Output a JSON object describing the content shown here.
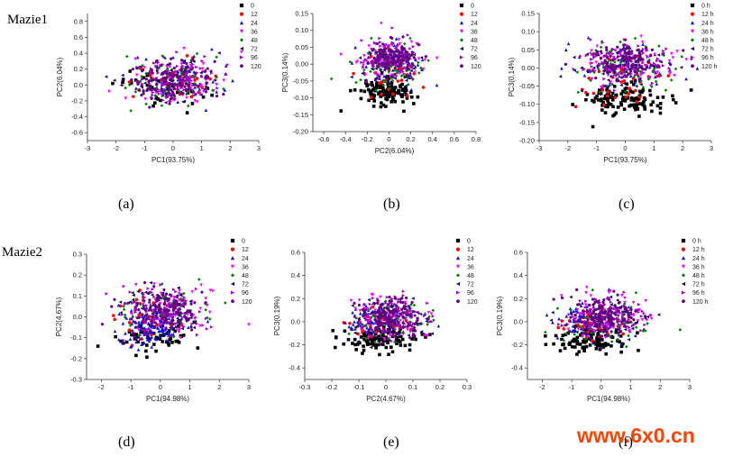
{
  "row_labels": [
    "Mazie1",
    "Mazie2"
  ],
  "panel_letters": [
    "(a)",
    "(b)",
    "(c)",
    "(d)",
    "(e)",
    "(f)"
  ],
  "watermark": "www.6x0.cn",
  "colors": {
    "0": "#000000",
    "12": "#ff0000",
    "24": "#1010e0",
    "36": "#ff00ff",
    "48": "#008000",
    "72": "#101060",
    "96": "#a000c0",
    "120": "#600080"
  },
  "chart_data": [
    {
      "type": "scatter",
      "id": "a",
      "xlabel": "PC1(93.75%)",
      "ylabel": "PC2(6.04%)",
      "xlim": [
        -3,
        3
      ],
      "ylim": [
        -0.7,
        0.9
      ],
      "xticks": [
        -3,
        -2,
        -1,
        0,
        1,
        2,
        3
      ],
      "yticks": [
        -0.6,
        -0.4,
        -0.2,
        0.0,
        0.2,
        0.4,
        0.6,
        0.8
      ],
      "legend": [
        "0",
        "12",
        "24",
        "36",
        "48",
        "72",
        "96",
        "120"
      ],
      "clusters": [
        {
          "series": "0",
          "cx": -0.3,
          "cy": 0.0,
          "sx": 0.8,
          "sy": 0.14,
          "n": 40
        },
        {
          "series": "12",
          "cx": 0.0,
          "cy": 0.05,
          "sx": 0.8,
          "sy": 0.14,
          "n": 35
        },
        {
          "series": "24",
          "cx": 0.0,
          "cy": 0.05,
          "sx": 0.8,
          "sy": 0.15,
          "n": 50
        },
        {
          "series": "36",
          "cx": 0.1,
          "cy": 0.05,
          "sx": 0.85,
          "sy": 0.15,
          "n": 70
        },
        {
          "series": "48",
          "cx": 0.0,
          "cy": 0.05,
          "sx": 0.85,
          "sy": 0.16,
          "n": 60
        },
        {
          "series": "72",
          "cx": -0.1,
          "cy": 0.05,
          "sx": 0.85,
          "sy": 0.15,
          "n": 50
        },
        {
          "series": "96",
          "cx": 0.0,
          "cy": 0.08,
          "sx": 0.75,
          "sy": 0.13,
          "n": 110
        },
        {
          "series": "120",
          "cx": 0.0,
          "cy": 0.08,
          "sx": 0.7,
          "sy": 0.12,
          "n": 110
        }
      ]
    },
    {
      "type": "scatter",
      "id": "b",
      "xlabel": "PC2(6.04%)",
      "ylabel": "PC3(0.14%)",
      "xlim": [
        -0.7,
        0.8
      ],
      "ylim": [
        -0.2,
        0.15
      ],
      "xticks": [
        -0.6,
        -0.4,
        -0.2,
        0.0,
        0.2,
        0.4,
        0.6,
        0.8
      ],
      "yticks": [
        -0.2,
        -0.15,
        -0.1,
        -0.05,
        0.0,
        0.05,
        0.1,
        0.15
      ],
      "legend": [
        "0",
        "12",
        "24",
        "36",
        "48",
        "72",
        "96",
        "120"
      ],
      "clusters": [
        {
          "series": "0",
          "cx": -0.05,
          "cy": -0.085,
          "sx": 0.12,
          "sy": 0.02,
          "n": 120
        },
        {
          "series": "12",
          "cx": 0.0,
          "cy": -0.03,
          "sx": 0.14,
          "sy": 0.03,
          "n": 40
        },
        {
          "series": "24",
          "cx": 0.0,
          "cy": 0.0,
          "sx": 0.15,
          "sy": 0.03,
          "n": 50
        },
        {
          "series": "36",
          "cx": 0.0,
          "cy": 0.01,
          "sx": 0.16,
          "sy": 0.03,
          "n": 70
        },
        {
          "series": "48",
          "cx": 0.0,
          "cy": 0.0,
          "sx": 0.16,
          "sy": 0.035,
          "n": 60
        },
        {
          "series": "72",
          "cx": 0.0,
          "cy": 0.0,
          "sx": 0.16,
          "sy": 0.03,
          "n": 50
        },
        {
          "series": "96",
          "cx": 0.02,
          "cy": 0.02,
          "sx": 0.13,
          "sy": 0.025,
          "n": 110
        },
        {
          "series": "120",
          "cx": 0.02,
          "cy": 0.02,
          "sx": 0.12,
          "sy": 0.025,
          "n": 110
        }
      ]
    },
    {
      "type": "scatter",
      "id": "c",
      "xlabel": "PC1(93.75%)",
      "ylabel": "PC3(0.14%)",
      "xlim": [
        -3,
        3
      ],
      "ylim": [
        -0.2,
        0.15
      ],
      "xticks": [
        -3,
        -2,
        -1,
        0,
        1,
        2,
        3
      ],
      "yticks": [
        -0.2,
        -0.15,
        -0.1,
        -0.05,
        0.0,
        0.05,
        0.1,
        0.15
      ],
      "legend": [
        "0 h",
        "12 h",
        "24 h",
        "36 h",
        "48 h",
        "72 h",
        "96 h",
        "120 h"
      ],
      "clusters": [
        {
          "series": "0",
          "cx": 0.0,
          "cy": -0.085,
          "sx": 0.75,
          "sy": 0.022,
          "n": 120
        },
        {
          "series": "12",
          "cx": 0.0,
          "cy": -0.03,
          "sx": 0.8,
          "sy": 0.03,
          "n": 40
        },
        {
          "series": "24",
          "cx": 0.0,
          "cy": 0.0,
          "sx": 0.8,
          "sy": 0.03,
          "n": 50
        },
        {
          "series": "36",
          "cx": 0.0,
          "cy": 0.01,
          "sx": 0.85,
          "sy": 0.03,
          "n": 70
        },
        {
          "series": "48",
          "cx": 0.0,
          "cy": 0.0,
          "sx": 0.85,
          "sy": 0.035,
          "n": 60
        },
        {
          "series": "72",
          "cx": -0.1,
          "cy": 0.0,
          "sx": 0.85,
          "sy": 0.03,
          "n": 50
        },
        {
          "series": "96",
          "cx": 0.0,
          "cy": 0.02,
          "sx": 0.75,
          "sy": 0.025,
          "n": 110
        },
        {
          "series": "120",
          "cx": 0.0,
          "cy": 0.02,
          "sx": 0.7,
          "sy": 0.025,
          "n": 110
        }
      ]
    },
    {
      "type": "scatter",
      "id": "d",
      "xlabel": "PC1(94.98%)",
      "ylabel": "PC2(4.67%)",
      "xlim": [
        -2.5,
        3
      ],
      "ylim": [
        -0.3,
        0.3
      ],
      "xticks": [
        -2,
        -1,
        0,
        1,
        2,
        3
      ],
      "yticks": [
        -0.3,
        -0.2,
        -0.1,
        0.0,
        0.1,
        0.2,
        0.3
      ],
      "legend": [
        "0",
        "12",
        "24",
        "36",
        "48",
        "72",
        "96",
        "120"
      ],
      "clusters": [
        {
          "series": "0",
          "cx": -0.2,
          "cy": -0.1,
          "sx": 0.7,
          "sy": 0.04,
          "n": 60
        },
        {
          "series": "12",
          "cx": -0.5,
          "cy": -0.02,
          "sx": 0.5,
          "sy": 0.05,
          "n": 30
        },
        {
          "series": "24",
          "cx": -0.4,
          "cy": -0.04,
          "sx": 0.6,
          "sy": 0.05,
          "n": 120
        },
        {
          "series": "36",
          "cx": 0.4,
          "cy": 0.03,
          "sx": 0.8,
          "sy": 0.06,
          "n": 80
        },
        {
          "series": "48",
          "cx": 0.2,
          "cy": 0.04,
          "sx": 0.8,
          "sy": 0.06,
          "n": 50
        },
        {
          "series": "72",
          "cx": 0.0,
          "cy": 0.03,
          "sx": 0.8,
          "sy": 0.06,
          "n": 50
        },
        {
          "series": "96",
          "cx": 0.2,
          "cy": 0.03,
          "sx": 0.65,
          "sy": 0.05,
          "n": 120
        },
        {
          "series": "120",
          "cx": 0.1,
          "cy": 0.03,
          "sx": 0.6,
          "sy": 0.05,
          "n": 120
        }
      ]
    },
    {
      "type": "scatter",
      "id": "e",
      "xlabel": "PC2(4.67%)",
      "ylabel": "PC3(0.19%)",
      "xlim": [
        -0.3,
        0.3
      ],
      "ylim": [
        -0.5,
        0.6
      ],
      "xticks": [
        -0.3,
        -0.2,
        -0.1,
        0.0,
        0.1,
        0.2,
        0.3
      ],
      "yticks": [
        -0.4,
        -0.2,
        0.0,
        0.2,
        0.4,
        0.6
      ],
      "legend": [
        "0",
        "12",
        "24",
        "36",
        "48",
        "72",
        "96",
        "120"
      ],
      "clusters": [
        {
          "series": "0",
          "cx": -0.03,
          "cy": -0.15,
          "sx": 0.07,
          "sy": 0.06,
          "n": 110
        },
        {
          "series": "12",
          "cx": -0.03,
          "cy": -0.02,
          "sx": 0.06,
          "sy": 0.07,
          "n": 40
        },
        {
          "series": "24",
          "cx": -0.04,
          "cy": 0.0,
          "sx": 0.06,
          "sy": 0.07,
          "n": 70
        },
        {
          "series": "36",
          "cx": 0.02,
          "cy": 0.03,
          "sx": 0.07,
          "sy": 0.1,
          "n": 70
        },
        {
          "series": "48",
          "cx": 0.02,
          "cy": 0.02,
          "sx": 0.07,
          "sy": 0.1,
          "n": 50
        },
        {
          "series": "72",
          "cx": 0.0,
          "cy": 0.02,
          "sx": 0.07,
          "sy": 0.1,
          "n": 50
        },
        {
          "series": "96",
          "cx": 0.02,
          "cy": 0.05,
          "sx": 0.055,
          "sy": 0.08,
          "n": 120
        },
        {
          "series": "120",
          "cx": 0.02,
          "cy": 0.05,
          "sx": 0.05,
          "sy": 0.08,
          "n": 120
        }
      ]
    },
    {
      "type": "scatter",
      "id": "f",
      "xlabel": "PC1(94.98%)",
      "ylabel": "PC3(0.19%)",
      "xlim": [
        -2.5,
        3
      ],
      "ylim": [
        -0.5,
        0.6
      ],
      "xticks": [
        -2,
        -1,
        0,
        1,
        2,
        3
      ],
      "yticks": [
        -0.4,
        -0.2,
        0.0,
        0.2,
        0.4,
        0.6
      ],
      "legend": [
        "0 h",
        "12 h",
        "24 h",
        "36 h",
        "48 h",
        "72 h",
        "96 h",
        "120 h"
      ],
      "clusters": [
        {
          "series": "0",
          "cx": -0.3,
          "cy": -0.15,
          "sx": 0.7,
          "sy": 0.06,
          "n": 110
        },
        {
          "series": "12",
          "cx": -0.4,
          "cy": -0.02,
          "sx": 0.6,
          "sy": 0.07,
          "n": 40
        },
        {
          "series": "24",
          "cx": -0.5,
          "cy": 0.0,
          "sx": 0.6,
          "sy": 0.07,
          "n": 60
        },
        {
          "series": "36",
          "cx": 0.3,
          "cy": 0.03,
          "sx": 0.8,
          "sy": 0.1,
          "n": 70
        },
        {
          "series": "48",
          "cx": 0.2,
          "cy": 0.02,
          "sx": 0.8,
          "sy": 0.1,
          "n": 50
        },
        {
          "series": "72",
          "cx": 0.0,
          "cy": 0.02,
          "sx": 0.8,
          "sy": 0.1,
          "n": 50
        },
        {
          "series": "96",
          "cx": 0.1,
          "cy": 0.05,
          "sx": 0.6,
          "sy": 0.08,
          "n": 120
        },
        {
          "series": "120",
          "cx": 0.1,
          "cy": 0.05,
          "sx": 0.55,
          "sy": 0.08,
          "n": 120
        }
      ]
    }
  ]
}
